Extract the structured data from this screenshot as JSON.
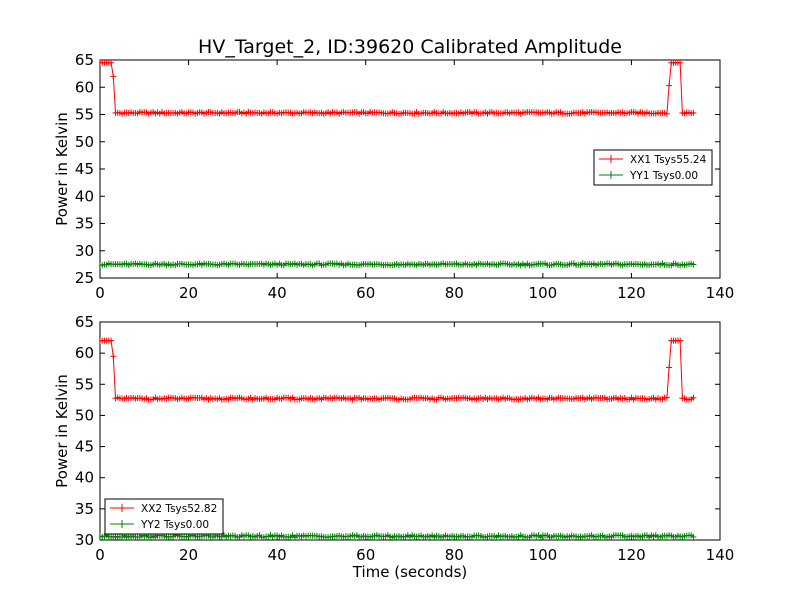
{
  "chart_data": [
    {
      "type": "line",
      "title": "HV_Target_2, ID:39620 Calibrated Amplitude",
      "xlabel": "",
      "ylabel": "Power in Kelvin",
      "xlim": [
        0,
        140
      ],
      "ylim": [
        25,
        65
      ],
      "xticks": [
        "0",
        "20",
        "40",
        "60",
        "80",
        "100",
        "120",
        "140"
      ],
      "yticks": [
        "25",
        "30",
        "35",
        "40",
        "45",
        "50",
        "55",
        "60",
        "65"
      ],
      "marker": "+",
      "legend_position": "center-right",
      "series": [
        {
          "name": "XX1 Tsys55.24",
          "color": "#ff0000",
          "baseline": 55.3,
          "segments": [
            {
              "x_start": 0,
              "x_end": 2.5,
              "y": 64.5
            },
            {
              "x_start": 2.5,
              "x_end": 3,
              "y": 62
            },
            {
              "x_start": 3,
              "x_end": 128,
              "y": 55.3
            },
            {
              "x_start": 128,
              "x_end": 128.5,
              "y": 60.3
            },
            {
              "x_start": 128.5,
              "x_end": 131,
              "y": 64.5
            },
            {
              "x_start": 131,
              "x_end": 134,
              "y": 55.3
            }
          ]
        },
        {
          "name": "YY1 Tsys0.00",
          "color": "#008000",
          "baseline": 27.5,
          "segments": [
            {
              "x_start": 0,
              "x_end": 134,
              "y": 27.5
            }
          ]
        }
      ]
    },
    {
      "type": "line",
      "title": "",
      "xlabel": "Time (seconds)",
      "ylabel": "Power in Kelvin",
      "xlim": [
        0,
        140
      ],
      "ylim": [
        30,
        65
      ],
      "xticks": [
        "0",
        "20",
        "40",
        "60",
        "80",
        "100",
        "120",
        "140"
      ],
      "yticks": [
        "30",
        "35",
        "40",
        "45",
        "50",
        "55",
        "60",
        "65"
      ],
      "marker": "+",
      "legend_position": "lower-left",
      "series": [
        {
          "name": "XX2 Tsys52.82",
          "color": "#ff0000",
          "baseline": 52.7,
          "segments": [
            {
              "x_start": 0,
              "x_end": 2.5,
              "y": 62
            },
            {
              "x_start": 2.5,
              "x_end": 3,
              "y": 59.5
            },
            {
              "x_start": 3,
              "x_end": 128,
              "y": 52.7
            },
            {
              "x_start": 128,
              "x_end": 128.5,
              "y": 57.7
            },
            {
              "x_start": 128.5,
              "x_end": 131,
              "y": 62
            },
            {
              "x_start": 131,
              "x_end": 134,
              "y": 52.7
            }
          ]
        },
        {
          "name": "YY2 Tsys0.00",
          "color": "#008000",
          "baseline": 30.6,
          "segments": [
            {
              "x_start": 0,
              "x_end": 134,
              "y": 30.6
            }
          ]
        }
      ]
    }
  ]
}
